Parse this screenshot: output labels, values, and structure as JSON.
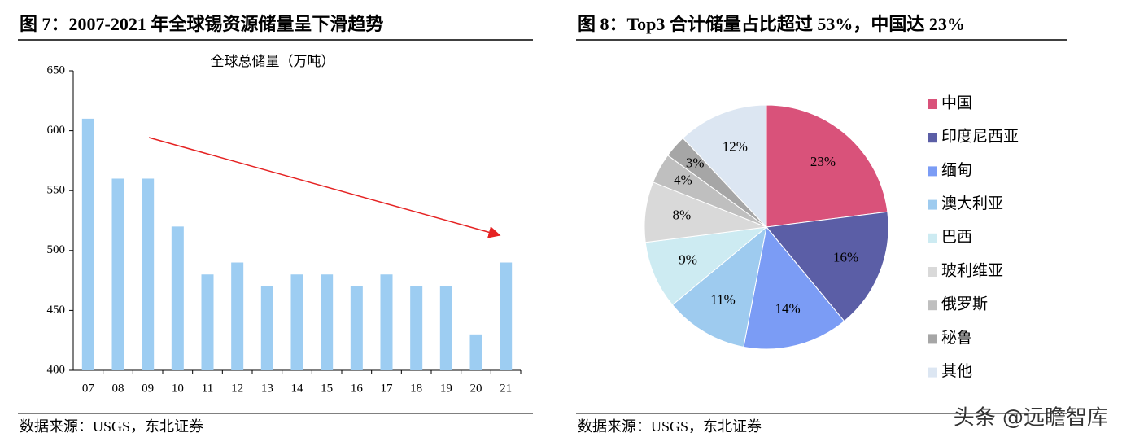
{
  "chart_data": [
    {
      "type": "bar",
      "title": "图 7：2007-2021 年全球锡资源储量呈下滑趋势",
      "subtitle": "全球总储量（万吨）",
      "categories": [
        "07",
        "08",
        "09",
        "10",
        "11",
        "12",
        "13",
        "14",
        "15",
        "16",
        "17",
        "18",
        "19",
        "20",
        "21"
      ],
      "values": [
        610,
        560,
        560,
        520,
        480,
        490,
        470,
        480,
        480,
        470,
        480,
        470,
        470,
        430,
        490
      ],
      "color": "#9dcdf2",
      "ylim": [
        400,
        650
      ],
      "yticks": [
        400,
        450,
        500,
        550,
        600,
        650
      ],
      "grid": false,
      "source": "数据来源：USGS，东北证券"
    },
    {
      "type": "pie",
      "title": "图 8：Top3 合计储量占比超过 53%，中国达 23%",
      "categories": [
        "中国",
        "印度尼西亚",
        "缅甸",
        "澳大利亚",
        "巴西",
        "玻利维亚",
        "俄罗斯",
        "秘鲁",
        "其他"
      ],
      "values": [
        23,
        16,
        14,
        11,
        9,
        8,
        4,
        3,
        12
      ],
      "value_labels": [
        "23%",
        "16%",
        "14%",
        "11%",
        "9%",
        "8%",
        "4%",
        "3%",
        "12%"
      ],
      "colors": [
        "#d9527a",
        "#5b5ea6",
        "#7b9cf5",
        "#9ecbef",
        "#cdebf2",
        "#d9d9d9",
        "#bfbfbf",
        "#a6a6a6",
        "#dce6f2"
      ],
      "legend": "right",
      "source": "数据来源：USGS，东北证券",
      "watermark": "头条 @远瞻智库"
    }
  ]
}
